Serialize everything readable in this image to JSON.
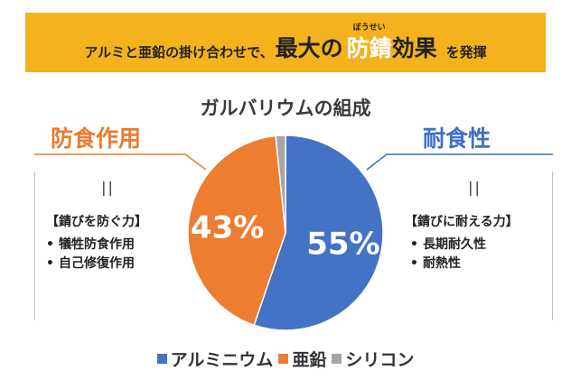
{
  "banner": {
    "part1": "アルミと亜鉛の掛け合わせで、",
    "part2": "最大の",
    "part3": "防錆",
    "ruby": "ぼうせい",
    "part4": "効果",
    "part5": "を発揮",
    "bg_color": "#f4b21d"
  },
  "left_panel": {
    "heading": "防食作用",
    "equals": "||",
    "subheading": "【錆びを防ぐ力】",
    "bullets": [
      "犠牲防食作用",
      "自己修復作用"
    ],
    "color": "#ec7a2e"
  },
  "right_panel": {
    "heading": "耐食性",
    "equals": "||",
    "subheading": "【錆びに耐える力】",
    "bullets": [
      "長期耐久性",
      "耐熱性"
    ],
    "color": "#3e6fc7"
  },
  "chart_data": {
    "type": "pie",
    "title": "ガルバリウムの組成",
    "categories": [
      "アルミニウム",
      "亜鉛",
      "シリコン"
    ],
    "values": [
      55,
      43,
      1.6
    ],
    "data_labels": [
      "55%",
      "43%",
      ""
    ],
    "colors": [
      "#4472c4",
      "#ed7d31",
      "#a5a5a5"
    ],
    "legend": "bottom"
  }
}
